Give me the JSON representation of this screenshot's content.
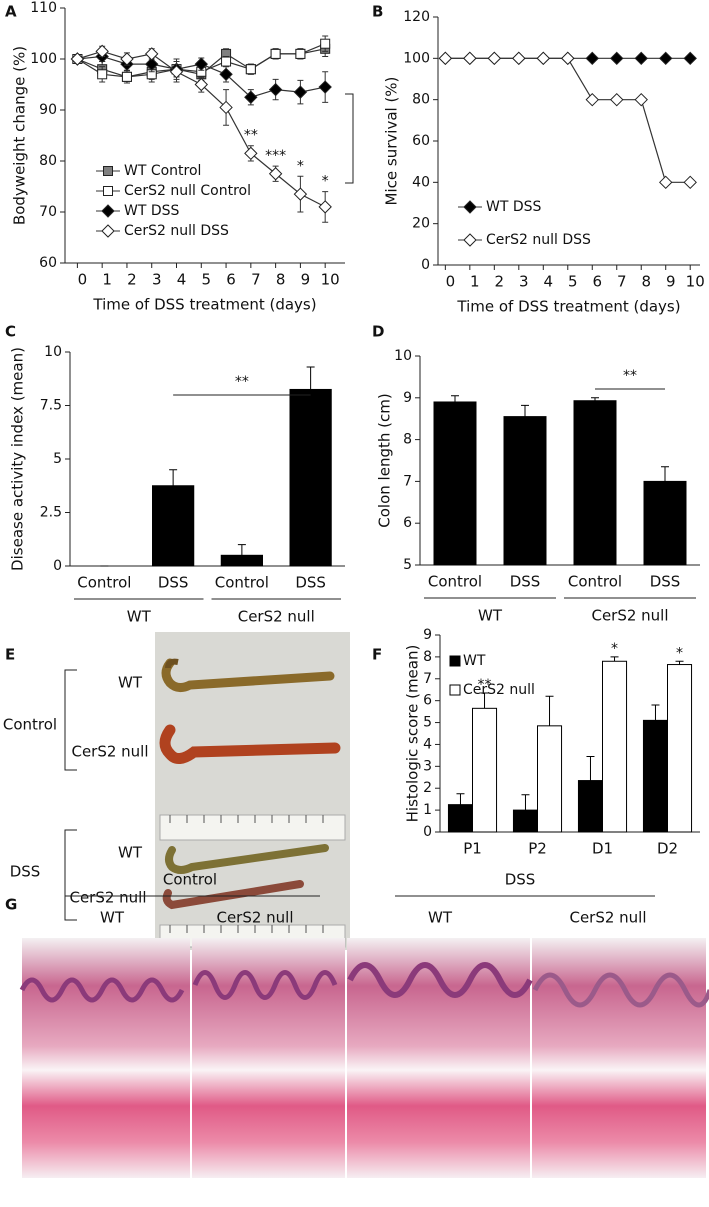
{
  "chart_data": [
    {
      "panel": "A",
      "type": "line",
      "y_label": "Bodyweight change (%)",
      "x_label": "Time of DSS treatment (days)",
      "x": [
        0,
        1,
        2,
        3,
        4,
        5,
        6,
        7,
        8,
        9,
        10
      ],
      "xlim": [
        -0.5,
        10.8
      ],
      "xticks": [
        0,
        1,
        2,
        3,
        4,
        5,
        6,
        7,
        8,
        9,
        10
      ],
      "ylim": [
        60,
        110
      ],
      "yticks": [
        60,
        70,
        80,
        90,
        100,
        110
      ],
      "legend": "lower left",
      "series": [
        {
          "name": "WT Control",
          "color": "#808080",
          "marker": "square",
          "values": [
            100,
            98,
            96.5,
            97.5,
            98,
            97,
            101,
            98,
            101,
            101,
            102
          ],
          "errors": [
            0.5,
            1.5,
            1.2,
            1.5,
            1.5,
            1.2,
            1,
            1,
            1,
            1,
            1.5
          ]
        },
        {
          "name": "CerS2 null Control",
          "color": "#ffffff",
          "marker": "square",
          "values": [
            100,
            97,
            96.5,
            97,
            98,
            97.5,
            99.5,
            98,
            101,
            101,
            103
          ],
          "errors": [
            0.5,
            1.5,
            1.2,
            1.5,
            1.5,
            1.2,
            1,
            1,
            1,
            1,
            1.5
          ]
        },
        {
          "name": "WT DSS",
          "color": "#000000",
          "marker": "diamond",
          "values": [
            100,
            100.5,
            99,
            99,
            98,
            99,
            97,
            92.5,
            94,
            93.5,
            94.5
          ],
          "errors": [
            0.5,
            1,
            1.2,
            1.5,
            2,
            1.2,
            1.5,
            1.5,
            2,
            2.3,
            3
          ]
        },
        {
          "name": "CerS2 null DSS",
          "color": "#ffffff",
          "marker": "diamond",
          "values": [
            100,
            101.5,
            100,
            101,
            97.5,
            95,
            90.5,
            81.5,
            77.5,
            73.5,
            71
          ],
          "errors": [
            0.5,
            1,
            1.2,
            1,
            2,
            1.5,
            3.5,
            1.5,
            1.5,
            3.5,
            3
          ]
        }
      ],
      "annotations": [
        "**",
        "***",
        "*",
        "*"
      ]
    },
    {
      "panel": "B",
      "type": "line",
      "y_label": "Mice survival (%)",
      "x_label": "Time of DSS treatment (days)",
      "x": [
        0,
        1,
        2,
        3,
        4,
        5,
        6,
        7,
        8,
        9,
        10
      ],
      "xlim": [
        -0.3,
        10.4
      ],
      "xticks": [
        0,
        1,
        2,
        3,
        4,
        5,
        6,
        7,
        8,
        9,
        10
      ],
      "ylim": [
        0,
        120
      ],
      "yticks": [
        0,
        20,
        40,
        60,
        80,
        100,
        120
      ],
      "legend": "center left",
      "series": [
        {
          "name": "WT DSS",
          "color": "#000000",
          "marker": "diamond",
          "values": [
            100,
            100,
            100,
            100,
            100,
            100,
            100,
            100,
            100,
            100,
            100
          ]
        },
        {
          "name": "CerS2 null DSS",
          "color": "#ffffff",
          "marker": "diamond",
          "values": [
            100,
            100,
            100,
            100,
            100,
            100,
            80,
            80,
            80,
            40,
            40
          ]
        }
      ]
    },
    {
      "panel": "C",
      "type": "bar",
      "y_label": "Disease activity index (mean)",
      "categories": [
        "Control",
        "DSS",
        "Control",
        "DSS"
      ],
      "groups": [
        "WT",
        "CerS2 null"
      ],
      "values": [
        0,
        3.75,
        0.5,
        8.25
      ],
      "errors": [
        0,
        0.75,
        0.5,
        1.05
      ],
      "color": "#000000",
      "ylim": [
        0,
        10
      ],
      "yticks": [
        0,
        2.5,
        5,
        7.5,
        10
      ],
      "annotations": [
        "**"
      ]
    },
    {
      "panel": "D",
      "type": "bar",
      "y_label": "Colon length (cm)",
      "categories": [
        "Control",
        "DSS",
        "Control",
        "DSS"
      ],
      "groups": [
        "WT",
        "CerS2 null"
      ],
      "values": [
        8.9,
        8.55,
        8.93,
        7
      ],
      "errors": [
        0.15,
        0.27,
        0.07,
        0.35
      ],
      "color": "#000000",
      "ylim": [
        5,
        10
      ],
      "yticks": [
        5,
        6,
        7,
        8,
        9,
        10
      ],
      "annotations": [
        "**"
      ]
    },
    {
      "panel": "F",
      "type": "bar",
      "y_label": "Histologic score (mean)",
      "categories": [
        "P1",
        "P2",
        "D1",
        "D2"
      ],
      "legend": "upper left",
      "series": [
        {
          "name": "WT",
          "color": "#000000",
          "values": [
            1.25,
            1,
            2.35,
            5.1
          ],
          "errors": [
            0.5,
            0.7,
            1.1,
            0.7
          ]
        },
        {
          "name": "CerS2 null",
          "color": "#ffffff",
          "values": [
            5.65,
            4.85,
            7.8,
            7.65
          ],
          "errors": [
            0.7,
            1.35,
            0.2,
            0.15
          ]
        }
      ],
      "ylim": [
        0,
        9
      ],
      "yticks": [
        0,
        1,
        2,
        3,
        4,
        5,
        6,
        7,
        8,
        9
      ],
      "annotations": [
        "**",
        "*",
        "*"
      ]
    }
  ],
  "photo_panel": {
    "panel": "E",
    "treatments": [
      {
        "label": "Control",
        "genotypes": [
          "WT",
          "CerS2 null"
        ]
      },
      {
        "label": "DSS",
        "genotypes": [
          "WT",
          "CerS2 null"
        ]
      }
    ]
  },
  "histology_panel": {
    "panel": "G",
    "treatments": [
      {
        "label": "Control",
        "genotypes": [
          "WT",
          "CerS2 null"
        ]
      },
      {
        "label": "DSS",
        "genotypes": [
          "WT",
          "CerS2 null"
        ]
      }
    ]
  }
}
